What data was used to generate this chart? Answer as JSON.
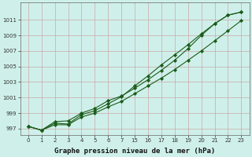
{
  "bg_color": "#cff0ea",
  "grid_color": "#c8a8a8",
  "line_color": "#1a5c1a",
  "marker_color": "#1a5c1a",
  "xlabel": "Graphe pression niveau de la mer (hPa)",
  "xlabel_fontsize": 6.5,
  "ylim": [
    996.2,
    1013.2
  ],
  "yticks": [
    997,
    999,
    1001,
    1003,
    1005,
    1007,
    1009,
    1011
  ],
  "xtick_positions": [
    0,
    1,
    2,
    3,
    4,
    5,
    6,
    7,
    8,
    9,
    10,
    11,
    12,
    13,
    14,
    15,
    16
  ],
  "xtick_labels": [
    "0",
    "1",
    "2",
    "3",
    "4",
    "5",
    "6",
    "7",
    "15",
    "16",
    "17",
    "18",
    "19",
    "20",
    "21",
    "22",
    "23"
  ],
  "series1_y": [
    997.3,
    996.8,
    997.7,
    997.6,
    998.8,
    999.3,
    1000.2,
    1001.1,
    1002.5,
    1003.8,
    1005.2,
    1006.5,
    1007.8,
    1009.2,
    1010.5,
    1011.6,
    1012.0
  ],
  "series2_y": [
    997.3,
    996.8,
    997.9,
    998.0,
    999.0,
    999.6,
    1000.6,
    1001.2,
    1002.2,
    1003.3,
    1004.5,
    1005.8,
    1007.3,
    1009.0,
    1010.5,
    1011.6,
    1012.0
  ],
  "series3_y": [
    997.3,
    996.8,
    997.5,
    997.5,
    998.5,
    999.0,
    999.8,
    1000.5,
    1001.5,
    1002.5,
    1003.5,
    1004.6,
    1005.8,
    1007.0,
    1008.3,
    1009.6,
    1010.9
  ]
}
